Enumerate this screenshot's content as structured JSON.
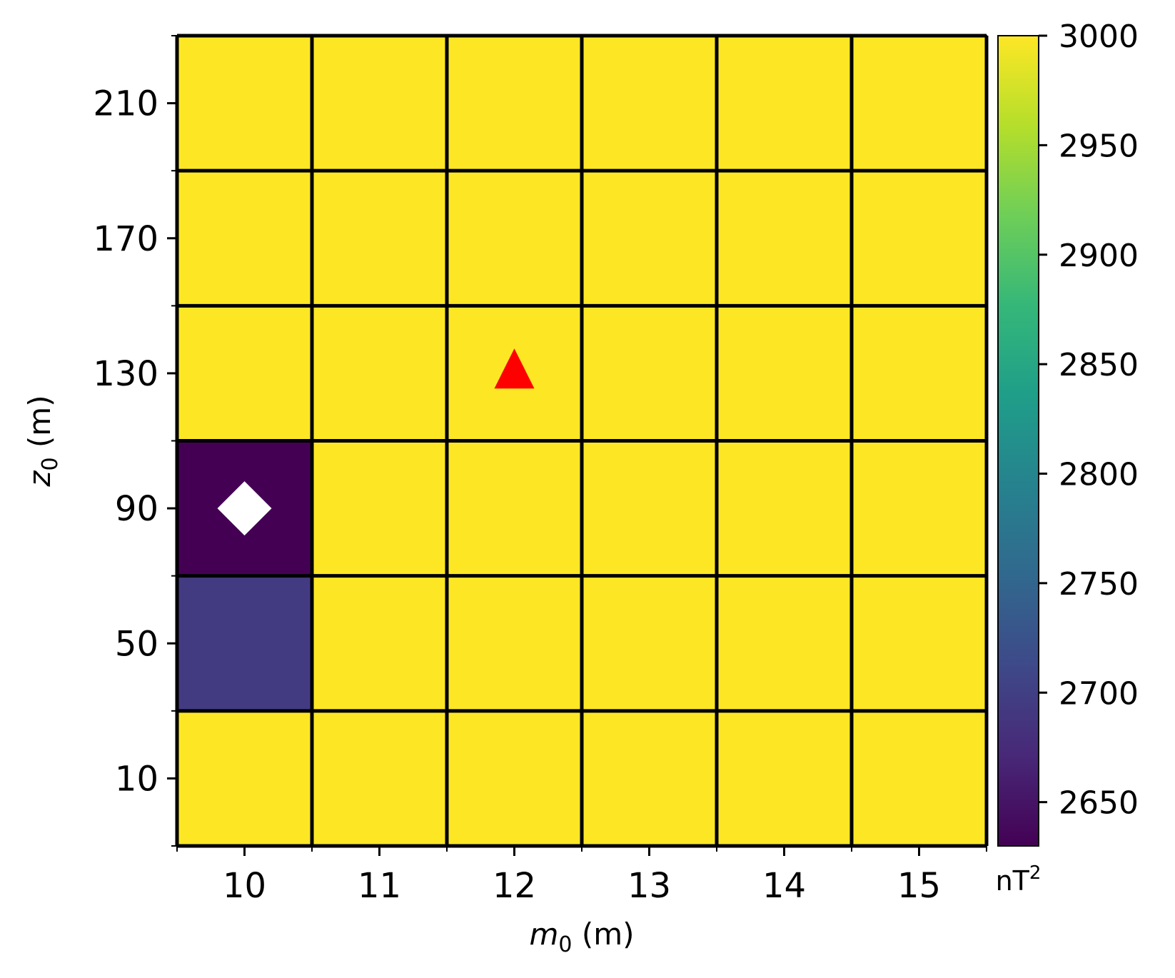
{
  "chart_data": {
    "type": "heatmap",
    "x_values": [
      10,
      11,
      12,
      13,
      14,
      15
    ],
    "y_values": [
      10,
      50,
      90,
      130,
      170,
      210
    ],
    "x_ticks": [
      10,
      11,
      12,
      13,
      14,
      15
    ],
    "y_ticks": [
      10,
      50,
      90,
      130,
      170,
      210
    ],
    "xlim": [
      9.5,
      15.5
    ],
    "ylim": [
      -10,
      230
    ],
    "xlabel": {
      "base": "m",
      "sub": "0",
      "unit": "(m)"
    },
    "ylabel": {
      "base": "z",
      "sub": "0",
      "unit": "(m)"
    },
    "grid": true,
    "colormap": "viridis",
    "colorbar": {
      "vmin": 2630,
      "vmax": 3000,
      "ticks": [
        2650,
        2700,
        2750,
        2800,
        2850,
        2900,
        2950,
        3000
      ],
      "unit_base": "nT",
      "unit_sup": "2",
      "stops": [
        "#440154",
        "#482878",
        "#3e4989",
        "#31688e",
        "#26828e",
        "#1f9e89",
        "#35b779",
        "#6ece58",
        "#b5de2b",
        "#fde725"
      ]
    },
    "cells": [
      {
        "x": 10,
        "y": 10,
        "value": 3000
      },
      {
        "x": 11,
        "y": 10,
        "value": 3000
      },
      {
        "x": 12,
        "y": 10,
        "value": 3000
      },
      {
        "x": 13,
        "y": 10,
        "value": 3000
      },
      {
        "x": 14,
        "y": 10,
        "value": 3000
      },
      {
        "x": 15,
        "y": 10,
        "value": 3000
      },
      {
        "x": 10,
        "y": 50,
        "value": 2695
      },
      {
        "x": 11,
        "y": 50,
        "value": 3000
      },
      {
        "x": 12,
        "y": 50,
        "value": 3000
      },
      {
        "x": 13,
        "y": 50,
        "value": 3000
      },
      {
        "x": 14,
        "y": 50,
        "value": 3000
      },
      {
        "x": 15,
        "y": 50,
        "value": 3000
      },
      {
        "x": 10,
        "y": 90,
        "value": 2630
      },
      {
        "x": 11,
        "y": 90,
        "value": 3000
      },
      {
        "x": 12,
        "y": 90,
        "value": 3000
      },
      {
        "x": 13,
        "y": 90,
        "value": 3000
      },
      {
        "x": 14,
        "y": 90,
        "value": 3000
      },
      {
        "x": 15,
        "y": 90,
        "value": 3000
      },
      {
        "x": 10,
        "y": 130,
        "value": 3000
      },
      {
        "x": 11,
        "y": 130,
        "value": 3000
      },
      {
        "x": 12,
        "y": 130,
        "value": 3000
      },
      {
        "x": 13,
        "y": 130,
        "value": 3000
      },
      {
        "x": 14,
        "y": 130,
        "value": 3000
      },
      {
        "x": 15,
        "y": 130,
        "value": 3000
      },
      {
        "x": 10,
        "y": 170,
        "value": 3000
      },
      {
        "x": 11,
        "y": 170,
        "value": 3000
      },
      {
        "x": 12,
        "y": 170,
        "value": 3000
      },
      {
        "x": 13,
        "y": 170,
        "value": 3000
      },
      {
        "x": 14,
        "y": 170,
        "value": 3000
      },
      {
        "x": 15,
        "y": 170,
        "value": 3000
      },
      {
        "x": 10,
        "y": 210,
        "value": 3000
      },
      {
        "x": 11,
        "y": 210,
        "value": 3000
      },
      {
        "x": 12,
        "y": 210,
        "value": 3000
      },
      {
        "x": 13,
        "y": 210,
        "value": 3000
      },
      {
        "x": 14,
        "y": 210,
        "value": 3000
      },
      {
        "x": 15,
        "y": 210,
        "value": 3000
      }
    ],
    "markers": [
      {
        "shape": "diamond",
        "color": "#ffffff",
        "x": 10,
        "y": 90
      },
      {
        "shape": "triangle",
        "color": "#ff0000",
        "x": 12,
        "y": 130
      }
    ]
  }
}
